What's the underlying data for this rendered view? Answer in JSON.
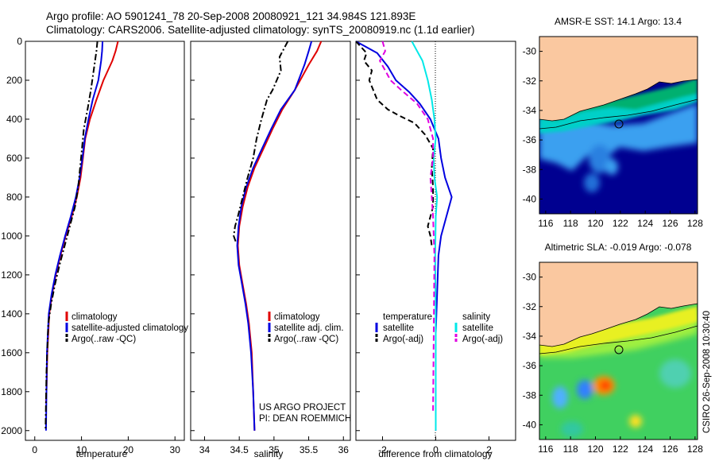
{
  "header": {
    "line1": "Argo profile: AO 5901241_78 20-Sep-2008 20080921_121 34.984S 121.893E",
    "line2": "Climatology: CARS2006. Satellite-adjusted climatology: synTS_20080919.nc (1.1d earlier)"
  },
  "credit": {
    "project": "US ARGO PROJECT",
    "pi": "PI: DEAN ROEMMICH",
    "stamp": "CSIRO 26-Sep-2008 10:30:40"
  },
  "colors": {
    "climatology": "#e00000",
    "satellite": "#0000e0",
    "argo": "#000000",
    "satellite_salinity": "#00e8e8",
    "argo_salinity_adj": "#e000e0",
    "land": "#fac8a0",
    "deep_ocean": "#000090"
  },
  "chart_data": [
    {
      "type": "line",
      "panel": "temperature",
      "xlabel": "temperature",
      "ylabel": "",
      "xlim": [
        -2,
        32
      ],
      "ylim": [
        2050,
        0
      ],
      "xticks": [
        0,
        10,
        20,
        30
      ],
      "yticks": [
        0,
        200,
        400,
        600,
        800,
        1000,
        1200,
        1400,
        1600,
        1800,
        2000
      ],
      "legend": [
        "climatology",
        "satellite-adjusted climatology",
        "Argo(..raw -QC)"
      ],
      "series": [
        {
          "name": "climatology",
          "style": "solid",
          "color": "#e00000",
          "x": [
            17.8,
            17.3,
            16.6,
            14.7,
            13.2,
            11.8,
            10.8,
            10.3,
            9.8,
            9.0,
            7.9,
            6.6,
            5.5,
            4.5,
            3.7,
            3.1,
            2.7,
            2.5,
            2.4
          ],
          "y": [
            0,
            50,
            100,
            200,
            300,
            400,
            500,
            600,
            700,
            800,
            900,
            1000,
            1100,
            1200,
            1300,
            1400,
            1600,
            1800,
            1860
          ]
        },
        {
          "name": "satellite-adjusted climatology",
          "style": "solid",
          "color": "#0000e0",
          "x": [
            14.5,
            14.4,
            14.2,
            13.6,
            12.4,
            11.5,
            10.7,
            10.2,
            9.6,
            8.8,
            7.7,
            6.5,
            5.4,
            4.4,
            3.6,
            3.0,
            2.6,
            2.5,
            2.4
          ],
          "y": [
            0,
            50,
            100,
            200,
            300,
            400,
            500,
            600,
            700,
            800,
            900,
            1000,
            1100,
            1200,
            1300,
            1400,
            1600,
            1800,
            2000
          ]
        },
        {
          "name": "Argo(..raw -QC)",
          "style": "dashdot",
          "color": "#000000",
          "x": [
            13.4,
            13.2,
            12.6,
            12.0,
            11.3,
            10.5,
            10.1,
            9.7,
            9.3,
            8.6,
            7.5,
            6.4,
            5.3,
            4.3,
            3.5,
            2.9,
            2.5,
            2.3
          ],
          "y": [
            0,
            50,
            150,
            250,
            350,
            450,
            550,
            650,
            750,
            850,
            950,
            1050,
            1150,
            1250,
            1350,
            1450,
            1700,
            2000
          ]
        }
      ]
    },
    {
      "type": "line",
      "panel": "salinity",
      "xlabel": "salinity",
      "ylabel": "",
      "xlim": [
        33.8,
        36.1
      ],
      "ylim": [
        2050,
        0
      ],
      "xticks": [
        34,
        34.5,
        35,
        35.5,
        36
      ],
      "legend": [
        "climatology",
        "satellite adj. clim.",
        "Argo(..raw -QC)"
      ],
      "series": [
        {
          "name": "climatology",
          "style": "solid",
          "color": "#e00000",
          "x": [
            35.68,
            35.62,
            35.5,
            35.3,
            35.12,
            34.98,
            34.85,
            34.72,
            34.62,
            34.55,
            34.5,
            34.48,
            34.5,
            34.55,
            34.6,
            34.64,
            34.68,
            34.7,
            34.72
          ],
          "y": [
            0,
            50,
            120,
            250,
            350,
            450,
            550,
            650,
            750,
            850,
            950,
            1050,
            1150,
            1250,
            1350,
            1450,
            1600,
            1800,
            2000
          ]
        },
        {
          "name": "satellite adj. clim.",
          "style": "solid",
          "color": "#0000e0",
          "x": [
            35.54,
            35.5,
            35.44,
            35.3,
            35.1,
            34.96,
            34.83,
            34.7,
            34.6,
            34.53,
            34.49,
            34.47,
            34.49,
            34.54,
            34.59,
            34.63,
            34.67,
            34.7,
            34.72
          ],
          "y": [
            0,
            50,
            120,
            250,
            350,
            450,
            550,
            650,
            750,
            850,
            950,
            1050,
            1150,
            1250,
            1350,
            1450,
            1600,
            1800,
            2000
          ]
        },
        {
          "name": "Argo(..raw -QC)",
          "style": "dashdot",
          "color": "#000000",
          "x": [
            35.2,
            35.08,
            35.1,
            34.98,
            34.9,
            34.82,
            34.75,
            34.7,
            34.62,
            34.55,
            34.48,
            34.44,
            34.42,
            34.45
          ],
          "y": [
            0,
            80,
            150,
            250,
            300,
            400,
            500,
            600,
            700,
            800,
            900,
            950,
            1000,
            1030
          ]
        }
      ]
    },
    {
      "type": "line",
      "panel": "difference",
      "xlabel": "difference from climatology",
      "ylabel": "",
      "xlim": [
        -3,
        3
      ],
      "ylim": [
        2050,
        0
      ],
      "xticks": [
        -2,
        0,
        2
      ],
      "legend": [
        "temperature",
        "satellite",
        "Argo(-adj)",
        "salinity",
        "satellite",
        "Argo(-adj)"
      ],
      "series": [
        {
          "name": "temperature satellite",
          "style": "solid",
          "color": "#0000e0",
          "x": [
            -3.0,
            -2.2,
            -1.8,
            -1.5,
            -1.0,
            -0.6,
            -0.2,
            0.1,
            0.2,
            0.35,
            0.6,
            0.4,
            0.2,
            0.1,
            0.05,
            0.0,
            0.0,
            0.0
          ],
          "y": [
            0,
            60,
            130,
            200,
            260,
            320,
            400,
            500,
            600,
            700,
            800,
            900,
            1000,
            1100,
            1300,
            1500,
            1800,
            2000
          ]
        },
        {
          "name": "salinity satellite",
          "style": "solid",
          "color": "#00e8e8",
          "x": [
            -0.9,
            -0.7,
            -0.5,
            -0.3,
            -0.15,
            -0.05,
            0.0,
            -0.08,
            -0.05,
            0.05,
            0.0,
            -0.02,
            0.0,
            0.0
          ],
          "y": [
            0,
            50,
            100,
            200,
            300,
            400,
            500,
            600,
            700,
            800,
            900,
            1100,
            1500,
            2000
          ]
        },
        {
          "name": "temperature Argo(-adj)",
          "style": "dashed",
          "color": "#000000",
          "x": [
            -3.0,
            -2.6,
            -2.7,
            -2.4,
            -2.5,
            -2.2,
            -1.8,
            -1.4,
            -0.8,
            -0.4,
            -0.1,
            -0.15,
            -0.1,
            -0.1,
            -0.3,
            -0.2,
            -0.15
          ],
          "y": [
            0,
            60,
            100,
            150,
            200,
            300,
            350,
            380,
            420,
            480,
            550,
            650,
            750,
            850,
            950,
            1000,
            1050
          ]
        },
        {
          "name": "salinity Argo(-adj)",
          "style": "dashed",
          "color": "#e000e0",
          "x": [
            -2.0,
            -1.9,
            -2.1,
            -1.9,
            -1.7,
            -1.3,
            -0.7,
            -0.3,
            -0.1,
            -0.1,
            -0.2,
            -0.15,
            -0.1,
            -0.05,
            -0.1
          ],
          "y": [
            0,
            50,
            100,
            150,
            200,
            250,
            320,
            400,
            500,
            600,
            700,
            800,
            900,
            1100,
            1900
          ]
        }
      ]
    },
    {
      "type": "heatmap",
      "panel": "sst-map",
      "title": "AMSR-E SST: 14.1 Argo: 13.4",
      "xlim": [
        115.5,
        128.2
      ],
      "ylim": [
        -41,
        -29
      ],
      "xticks": [
        116,
        118,
        120,
        122,
        124,
        126,
        128
      ],
      "yticks": [
        -30,
        -32,
        -34,
        -36,
        -38,
        -40
      ],
      "argo_position": {
        "lon": 121.893,
        "lat": -34.984
      }
    },
    {
      "type": "heatmap",
      "panel": "sla-map",
      "title": "Altimetric SLA: -0.019 Argo: -0.078",
      "xlim": [
        115.5,
        128.2
      ],
      "ylim": [
        -41,
        -29
      ],
      "xticks": [
        116,
        118,
        120,
        122,
        124,
        126,
        128
      ],
      "yticks": [
        -30,
        -32,
        -34,
        -36,
        -38,
        -40
      ],
      "argo_position": {
        "lon": 121.893,
        "lat": -34.984
      }
    }
  ]
}
